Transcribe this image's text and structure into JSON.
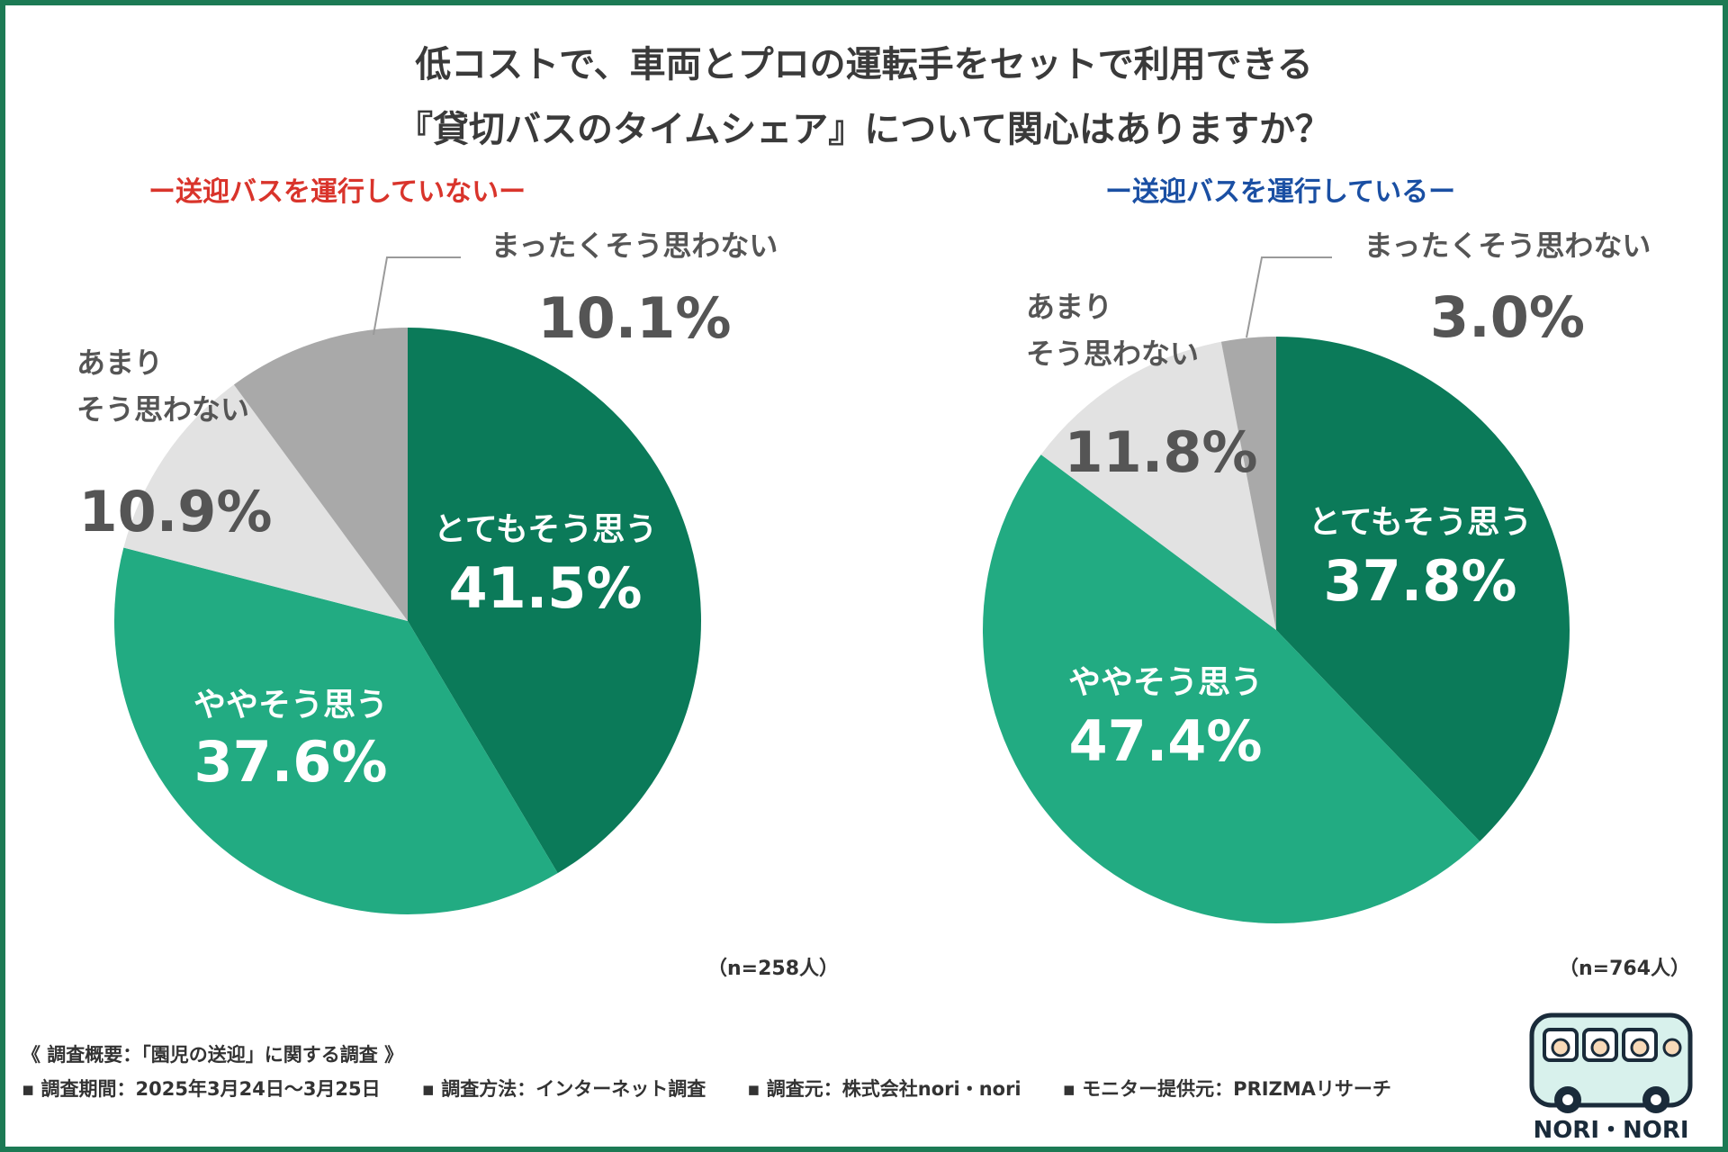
{
  "title": {
    "line1": "低コストで、車両とプロの運転手をセットで利用できる",
    "line2": "『貸切バスのタイムシェア』について関心はありますか？"
  },
  "colors": {
    "very": "#0b7a59",
    "somewhat": "#22ab82",
    "not_much": "#e2e2e2",
    "not_at_all": "#a9a9a9",
    "left_subtitle": "#d9342b",
    "right_subtitle": "#1a4fa3",
    "frame": "#1c7a54"
  },
  "chart_data": [
    {
      "type": "pie",
      "title": "ー送迎バスを運行していないー",
      "n_label": "（n=258人）",
      "slices": [
        {
          "label": "とてもそう思う",
          "value": 41.5,
          "value_label": "41.5%"
        },
        {
          "label": "ややそう思う",
          "value": 37.6,
          "value_label": "37.6%"
        },
        {
          "label": "あまり\nそう思わない",
          "value": 10.9,
          "value_label": "10.9%"
        },
        {
          "label": "まったくそう思わない",
          "value": 10.1,
          "value_label": "10.1%"
        }
      ]
    },
    {
      "type": "pie",
      "title": "ー送迎バスを運行しているー",
      "n_label": "（n=764人）",
      "slices": [
        {
          "label": "とてもそう思う",
          "value": 37.8,
          "value_label": "37.8%"
        },
        {
          "label": "ややそう思う",
          "value": 47.4,
          "value_label": "47.4%"
        },
        {
          "label": "あまり\nそう思わない",
          "value": 11.8,
          "value_label": "11.8%"
        },
        {
          "label": "まったくそう思わない",
          "value": 3.0,
          "value_label": "3.0%"
        }
      ]
    }
  ],
  "survey": {
    "heading": "《 調査概要：「園児の送迎」に関する調査 》",
    "items": [
      "▪ 調査期間：2025年3月24日〜3月25日",
      "▪ 調査方法：インターネット調査",
      "▪ 調査元：株式会社nori・nori",
      "▪ モニター提供元：PRIZMAリサーチ"
    ]
  },
  "logo": {
    "text": "NORI・NORI",
    "icon": "school-bus-icon"
  }
}
